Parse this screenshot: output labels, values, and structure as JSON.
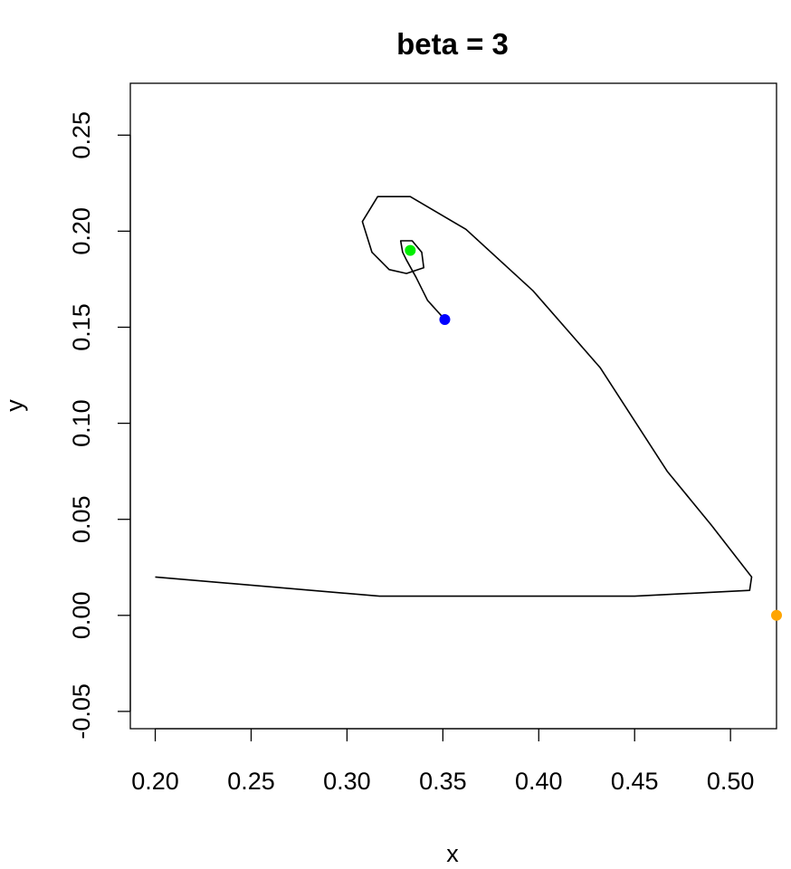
{
  "chart_data": {
    "type": "line",
    "title": "beta = 3",
    "xlabel": "x",
    "ylabel": "y",
    "xlim": [
      0.187,
      0.524
    ],
    "ylim": [
      -0.059,
      0.277
    ],
    "xticks": [
      "0.20",
      "0.25",
      "0.30",
      "0.35",
      "0.40",
      "0.45",
      "0.50"
    ],
    "xtick_values": [
      0.2,
      0.25,
      0.3,
      0.35,
      0.4,
      0.45,
      0.5
    ],
    "yticks": [
      "-0.05",
      "0.00",
      "0.05",
      "0.10",
      "0.15",
      "0.20",
      "0.25"
    ],
    "ytick_values": [
      -0.05,
      0.0,
      0.05,
      0.1,
      0.15,
      0.2,
      0.25
    ],
    "grid": false,
    "series": [
      {
        "points": [
          [
            0.2,
            0.02
          ],
          [
            0.317,
            0.01
          ],
          [
            0.45,
            0.01
          ],
          [
            0.51,
            0.013
          ],
          [
            0.511,
            0.02
          ],
          [
            0.49,
            0.047
          ],
          [
            0.467,
            0.075
          ],
          [
            0.432,
            0.129
          ],
          [
            0.397,
            0.169
          ],
          [
            0.362,
            0.201
          ],
          [
            0.333,
            0.218
          ],
          [
            0.316,
            0.218
          ],
          [
            0.308,
            0.205
          ],
          [
            0.313,
            0.189
          ],
          [
            0.322,
            0.18
          ],
          [
            0.331,
            0.178
          ],
          [
            0.34,
            0.181
          ],
          [
            0.339,
            0.189
          ],
          [
            0.334,
            0.195
          ],
          [
            0.328,
            0.195
          ],
          [
            0.329,
            0.189
          ],
          [
            0.331,
            0.185
          ],
          [
            0.336,
            0.176
          ],
          [
            0.342,
            0.164
          ],
          [
            0.351,
            0.154
          ]
        ],
        "color": "#000000"
      }
    ],
    "markers": [
      {
        "x": 0.351,
        "y": 0.154,
        "color": "#0000ff"
      },
      {
        "x": 0.333,
        "y": 0.19,
        "color": "#00ee00"
      },
      {
        "x": 0.524,
        "y": 0.0,
        "color": "#ffa500"
      }
    ]
  }
}
